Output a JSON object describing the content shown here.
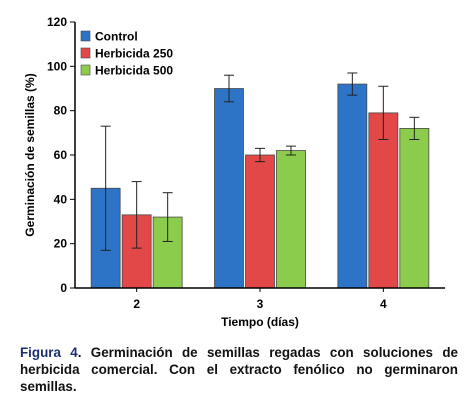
{
  "chart_data": {
    "type": "bar",
    "xlabel": "Tiempo (días)",
    "ylabel": "Germinación de semillas (%)",
    "categories": [
      "2",
      "3",
      "4"
    ],
    "ylim": [
      0,
      120
    ],
    "yticks": [
      0,
      20,
      40,
      60,
      80,
      100,
      120
    ],
    "grid": false,
    "legend_position": "top-left",
    "series": [
      {
        "name": "Control",
        "color": "#2e74c6",
        "values": [
          45,
          90,
          92
        ],
        "errors": [
          28,
          6,
          5
        ]
      },
      {
        "name": "Herbicida 250",
        "color": "#e24848",
        "values": [
          33,
          60,
          79
        ],
        "errors": [
          15,
          3,
          12
        ]
      },
      {
        "name": "Herbicida 500",
        "color": "#8ccc4c",
        "values": [
          32,
          62,
          72
        ],
        "errors": [
          11,
          2,
          5
        ]
      }
    ]
  },
  "caption": {
    "label": "Figura 4",
    "text": ". Germinación de semillas regadas con soluciones de herbicida comercial. Con el extracto fenólico no germinaron semillas."
  }
}
